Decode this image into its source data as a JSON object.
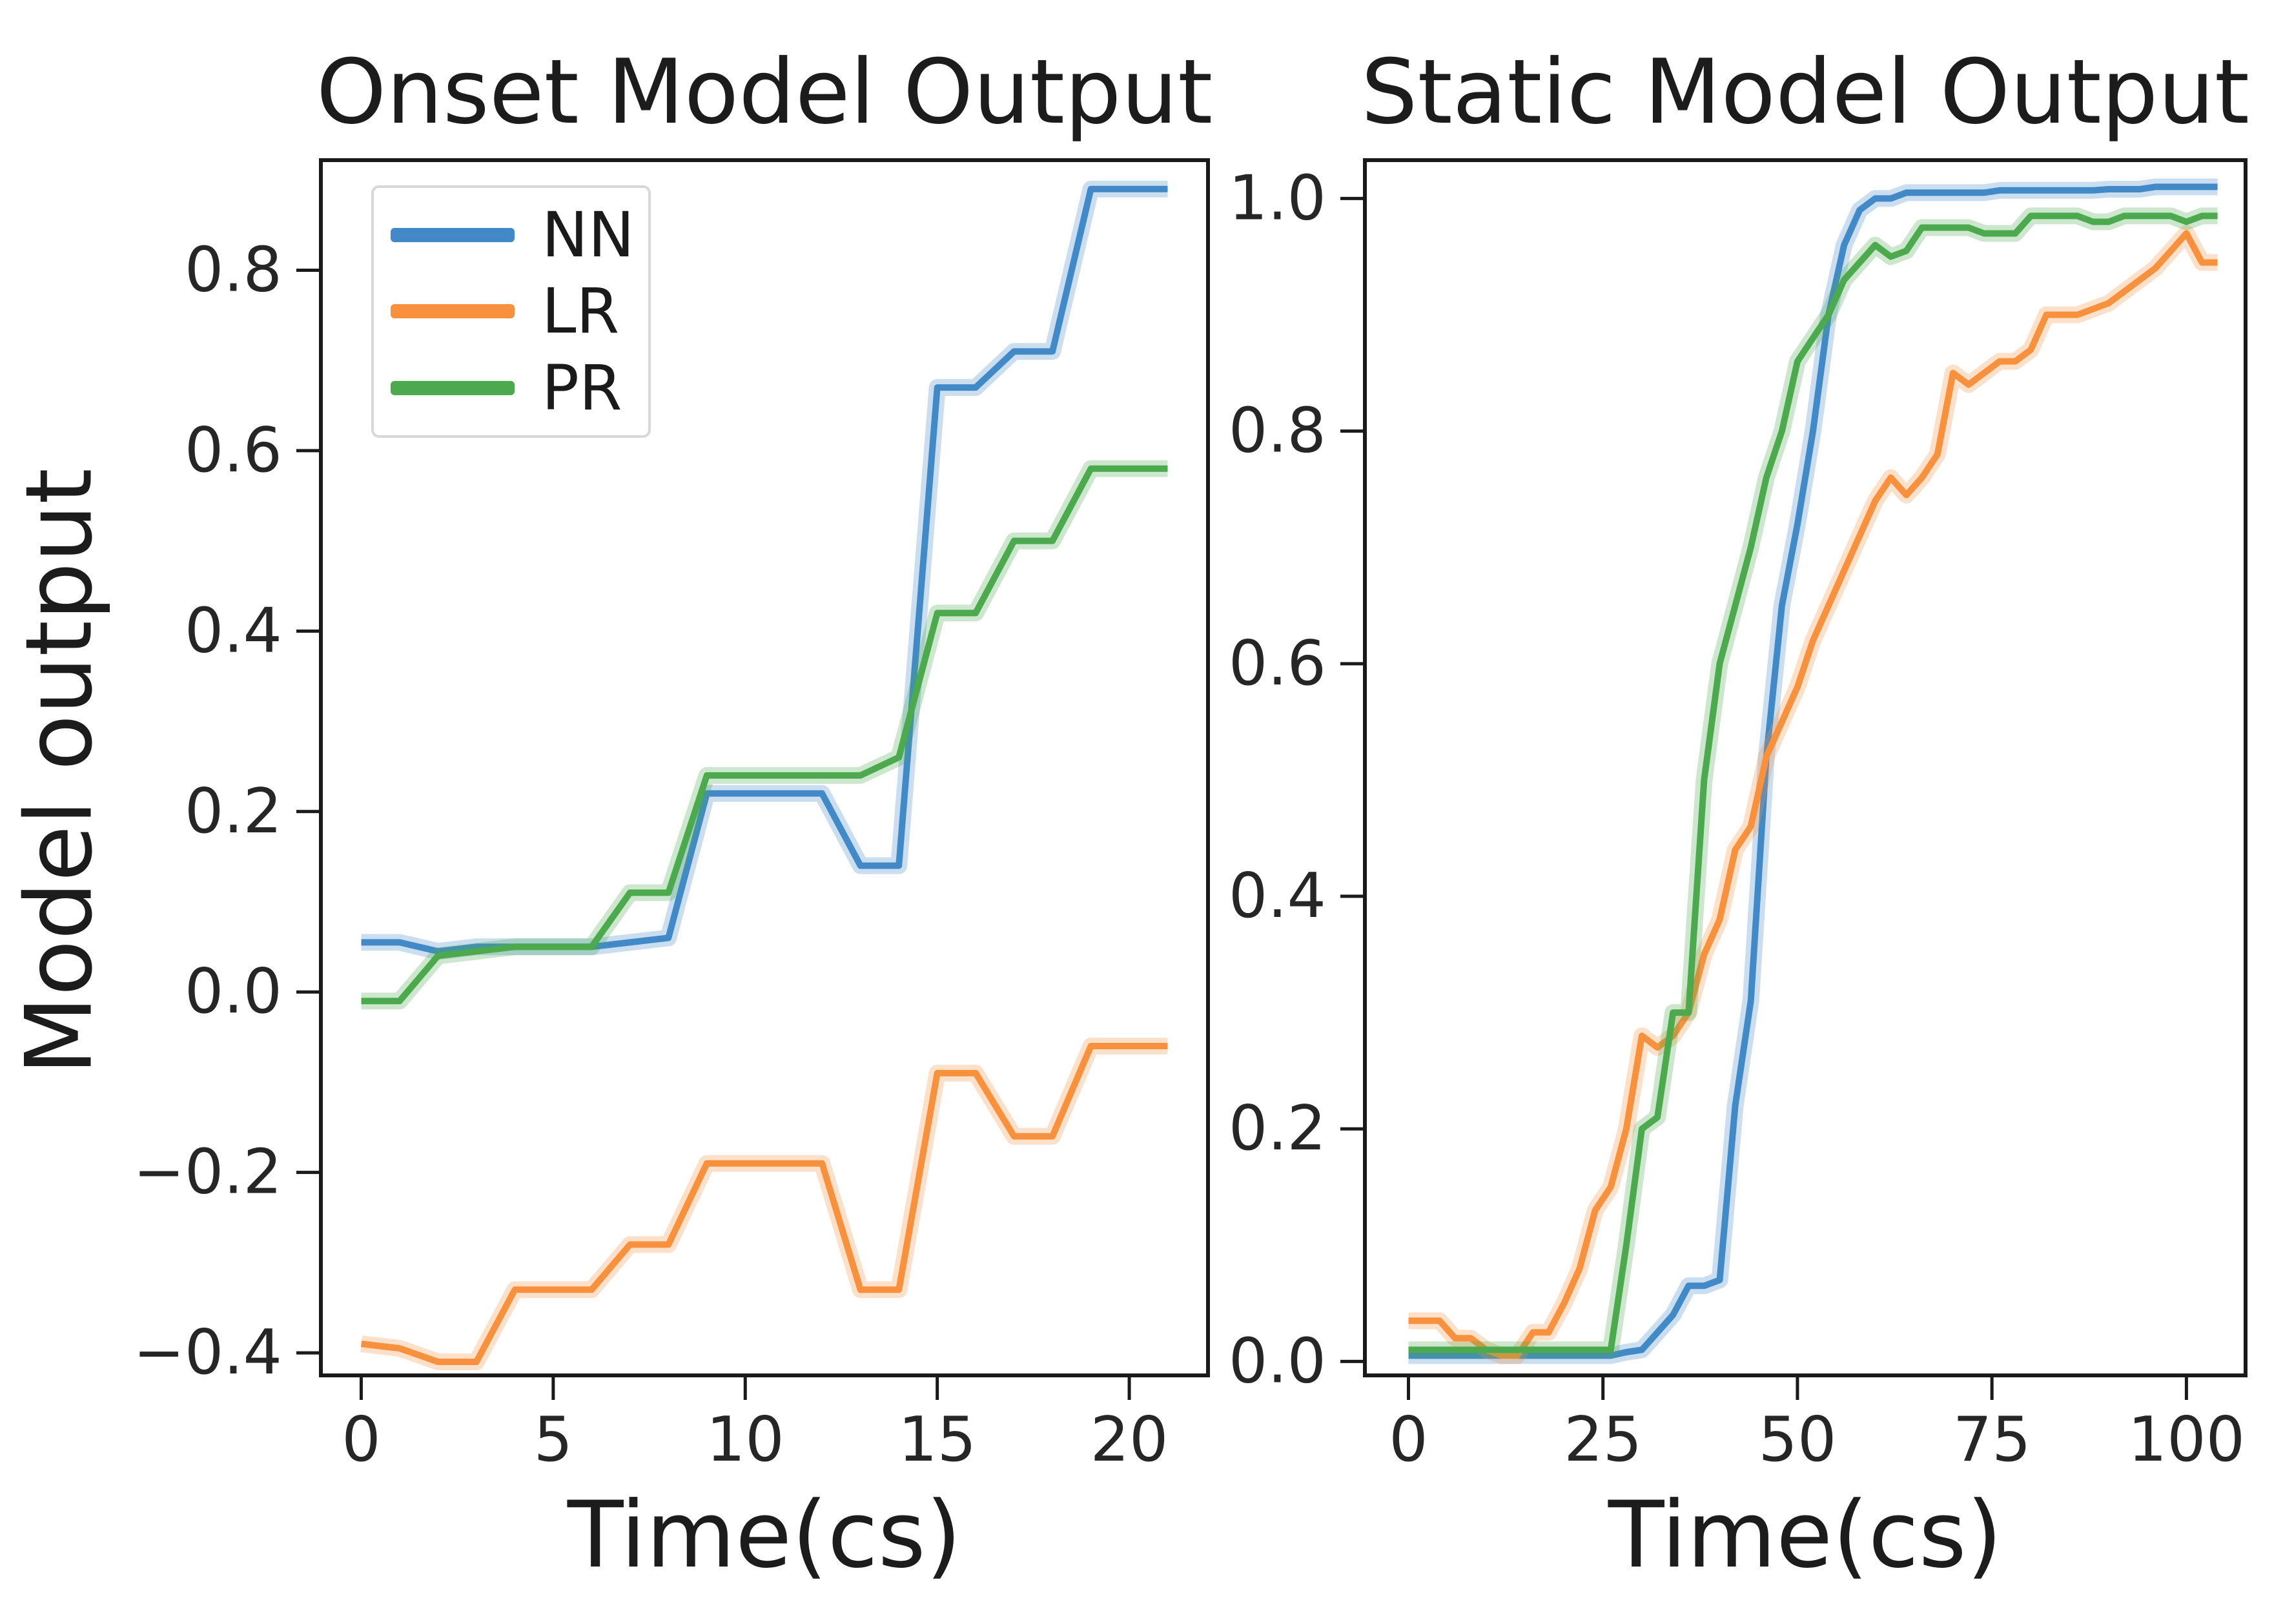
{
  "chart_data": [
    {
      "type": "line",
      "title": "Onset Model Output",
      "xlabel": "Time(cs)",
      "ylabel": "Model output",
      "grid": false,
      "legend": {
        "position": "upper left",
        "entries": [
          "NN",
          "LR",
          "PR"
        ]
      },
      "xlim": [
        -1.05,
        22.05
      ],
      "ylim": [
        -0.425,
        0.922
      ],
      "xticks": [
        0,
        5,
        10,
        15,
        20
      ],
      "xtick_labels": [
        "0",
        "5",
        "10",
        "15",
        "20"
      ],
      "yticks": [
        0.8,
        0.6,
        0.4,
        0.2,
        0.0,
        -0.2,
        -0.4
      ],
      "ytick_labels": [
        "0.8",
        "0.6",
        "0.4",
        "0.2",
        "0.0",
        "−0.2",
        "−0.4"
      ],
      "x": [
        0,
        1,
        2,
        3,
        4,
        5,
        6,
        7,
        8,
        9,
        10,
        11,
        12,
        13,
        14,
        15,
        16,
        17,
        18,
        19,
        20,
        21
      ],
      "series": [
        {
          "name": "NN",
          "color": "#4289c8",
          "values": [
            0.055,
            0.055,
            0.045,
            0.05,
            0.05,
            0.05,
            0.05,
            0.055,
            0.06,
            0.22,
            0.22,
            0.22,
            0.22,
            0.14,
            0.14,
            0.67,
            0.67,
            0.71,
            0.71,
            0.89,
            0.89,
            0.89
          ]
        },
        {
          "name": "LR",
          "color": "#f8913e",
          "values": [
            -0.39,
            -0.395,
            -0.41,
            -0.41,
            -0.33,
            -0.33,
            -0.33,
            -0.28,
            -0.28,
            -0.19,
            -0.19,
            -0.19,
            -0.19,
            -0.33,
            -0.33,
            -0.09,
            -0.09,
            -0.16,
            -0.16,
            -0.06,
            -0.06,
            -0.06
          ]
        },
        {
          "name": "PR",
          "color": "#4ca94e",
          "values": [
            -0.01,
            -0.01,
            0.04,
            0.045,
            0.05,
            0.05,
            0.05,
            0.11,
            0.11,
            0.24,
            0.24,
            0.24,
            0.24,
            0.24,
            0.26,
            0.42,
            0.42,
            0.5,
            0.5,
            0.58,
            0.58,
            0.58
          ]
        }
      ]
    },
    {
      "type": "line",
      "title": "Static Model Output",
      "xlabel": "Time(cs)",
      "ylabel": "",
      "grid": false,
      "legend": null,
      "xlim": [
        -5.6,
        107.6
      ],
      "ylim": [
        -0.012,
        1.033
      ],
      "xticks": [
        0,
        25,
        50,
        75,
        100
      ],
      "xtick_labels": [
        "0",
        "25",
        "50",
        "75",
        "100"
      ],
      "yticks": [
        1.0,
        0.8,
        0.6,
        0.4,
        0.2,
        0.0
      ],
      "ytick_labels": [
        "1.0",
        "0.8",
        "0.6",
        "0.4",
        "0.2",
        "0.0"
      ],
      "x": [
        0,
        2,
        4,
        6,
        8,
        10,
        12,
        14,
        16,
        18,
        20,
        22,
        24,
        26,
        28,
        30,
        32,
        34,
        36,
        38,
        40,
        42,
        44,
        46,
        48,
        50,
        52,
        54,
        56,
        58,
        60,
        62,
        64,
        66,
        68,
        70,
        72,
        74,
        76,
        78,
        80,
        82,
        84,
        86,
        88,
        90,
        92,
        94,
        96,
        98,
        100,
        102,
        104
      ],
      "series": [
        {
          "name": "NN",
          "color": "#4289c8",
          "values": [
            0.005,
            0.005,
            0.005,
            0.005,
            0.005,
            0.005,
            0.005,
            0.005,
            0.005,
            0.005,
            0.005,
            0.005,
            0.005,
            0.005,
            0.008,
            0.01,
            0.025,
            0.04,
            0.065,
            0.065,
            0.07,
            0.22,
            0.31,
            0.52,
            0.65,
            0.72,
            0.8,
            0.9,
            0.96,
            0.99,
            1.0,
            1.0,
            1.005,
            1.005,
            1.005,
            1.005,
            1.005,
            1.005,
            1.007,
            1.007,
            1.007,
            1.007,
            1.007,
            1.007,
            1.007,
            1.008,
            1.008,
            1.008,
            1.01,
            1.01,
            1.01,
            1.01,
            1.01
          ]
        },
        {
          "name": "LR",
          "color": "#f8913e",
          "values": [
            0.035,
            0.035,
            0.035,
            0.02,
            0.02,
            0.01,
            0.005,
            0.005,
            0.025,
            0.025,
            0.05,
            0.08,
            0.13,
            0.15,
            0.2,
            0.28,
            0.27,
            0.28,
            0.3,
            0.35,
            0.38,
            0.44,
            0.46,
            0.52,
            0.55,
            0.58,
            0.62,
            0.65,
            0.68,
            0.71,
            0.74,
            0.76,
            0.745,
            0.76,
            0.78,
            0.85,
            0.84,
            0.85,
            0.86,
            0.86,
            0.87,
            0.9,
            0.9,
            0.9,
            0.905,
            0.91,
            0.92,
            0.93,
            0.94,
            0.955,
            0.97,
            0.945,
            0.945
          ]
        },
        {
          "name": "PR",
          "color": "#4ca94e",
          "values": [
            0.01,
            0.01,
            0.01,
            0.01,
            0.01,
            0.01,
            0.01,
            0.01,
            0.01,
            0.01,
            0.01,
            0.01,
            0.01,
            0.01,
            0.1,
            0.2,
            0.21,
            0.3,
            0.3,
            0.5,
            0.6,
            0.65,
            0.7,
            0.76,
            0.8,
            0.86,
            0.88,
            0.9,
            0.93,
            0.945,
            0.96,
            0.95,
            0.955,
            0.975,
            0.975,
            0.975,
            0.975,
            0.97,
            0.97,
            0.97,
            0.985,
            0.985,
            0.985,
            0.985,
            0.98,
            0.98,
            0.985,
            0.985,
            0.985,
            0.985,
            0.98,
            0.985,
            0.985
          ]
        }
      ]
    }
  ]
}
